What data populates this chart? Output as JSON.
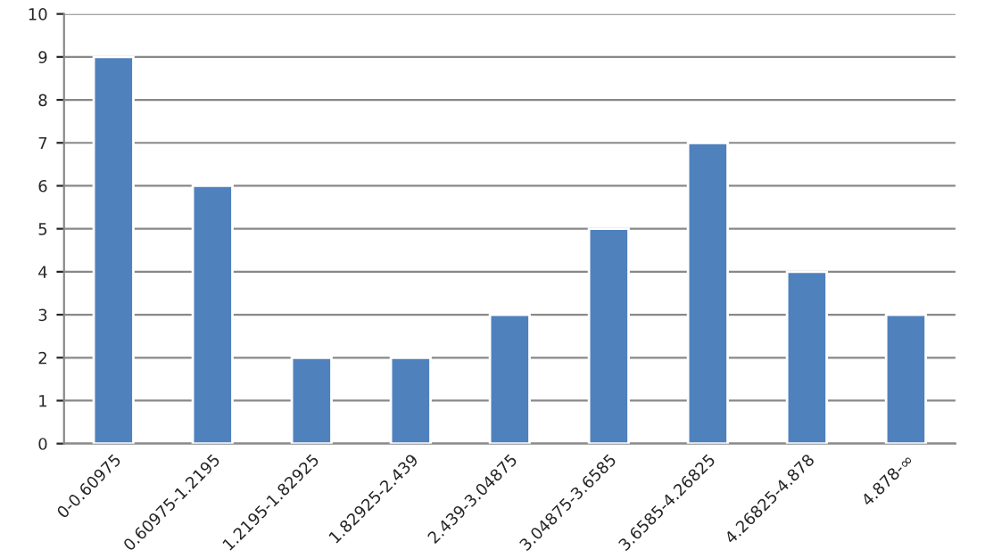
{
  "chart_data": {
    "type": "bar",
    "categories": [
      "0-0.60975",
      "0.60975-1.2195",
      "1.2195-1.82925",
      "1.82925-2.439",
      "2.439-3.04875",
      "3.04875-3.6585",
      "3.6585-4.26825",
      "4.26825-4.878",
      "4.878-∞"
    ],
    "values": [
      9,
      6,
      2,
      2,
      3,
      5,
      7,
      4,
      3
    ],
    "color": "#4f81bd",
    "ylim": [
      0,
      10
    ],
    "yticks": [
      0,
      1,
      2,
      3,
      4,
      5,
      6,
      7,
      8,
      9,
      10
    ],
    "grid": "y"
  }
}
